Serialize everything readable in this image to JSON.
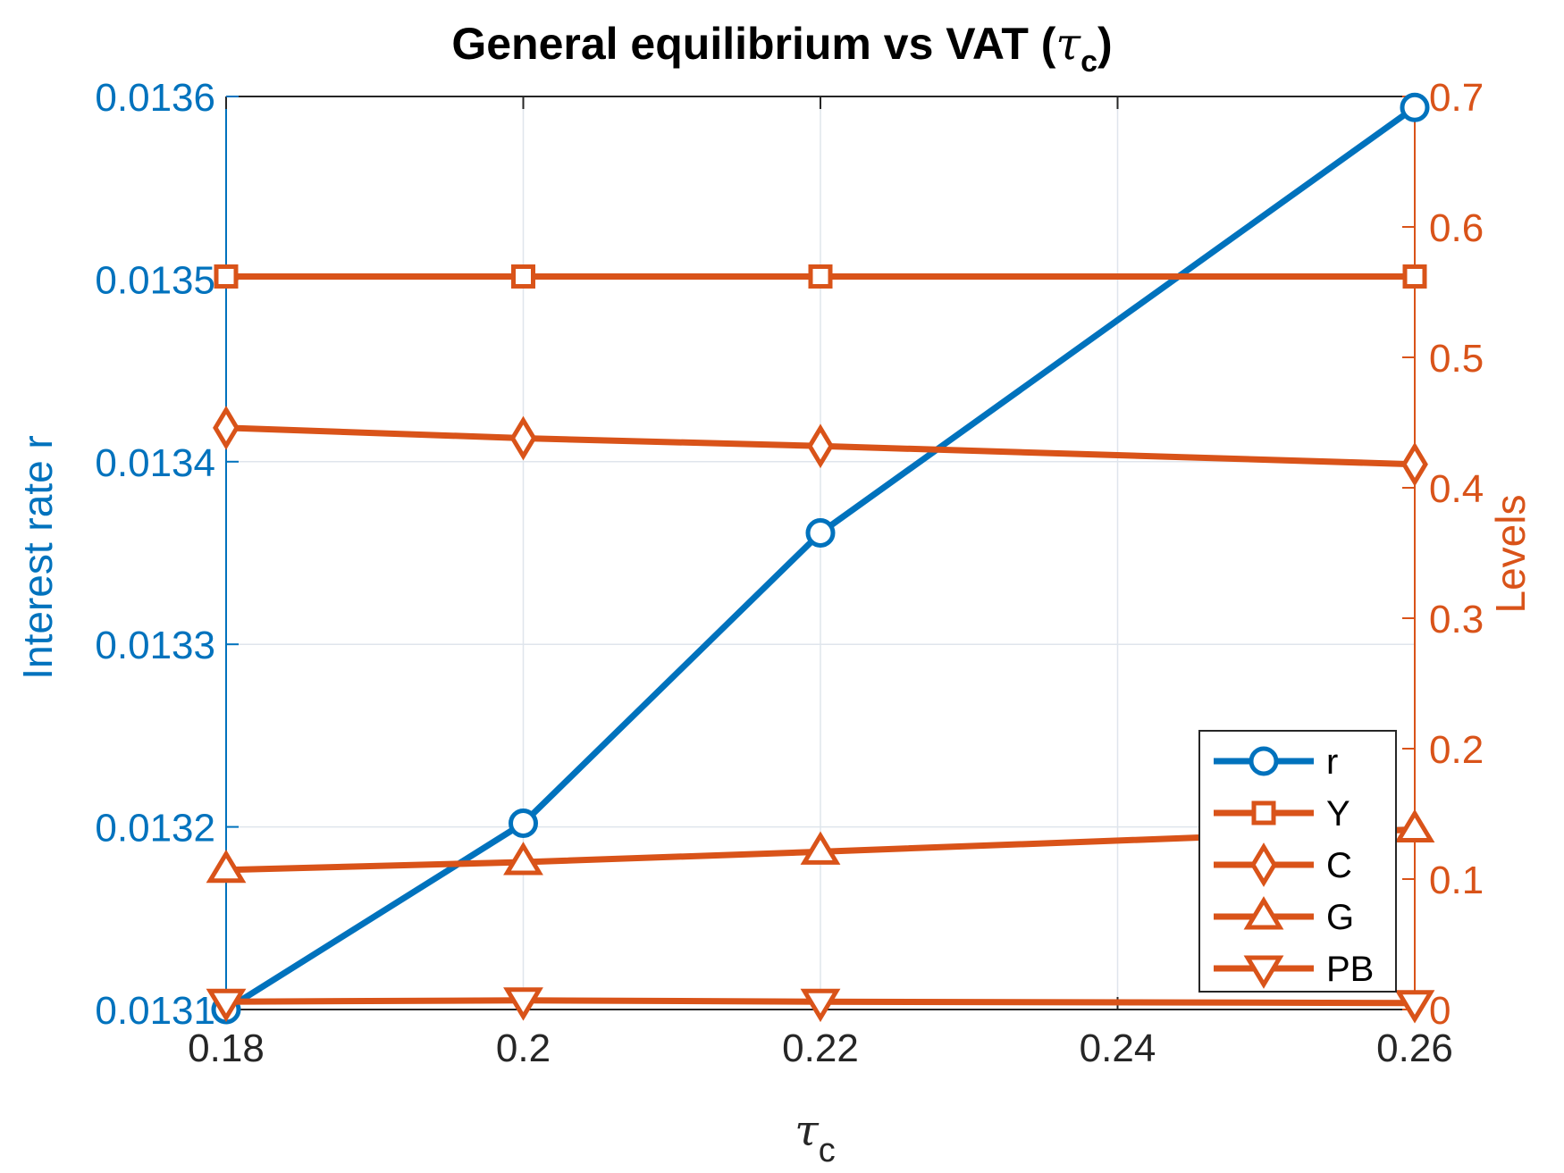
{
  "chart_data": {
    "type": "line",
    "title": "General equilibrium vs VAT (",
    "title_symbol": "τ",
    "title_sub": "c",
    "title_close": ")",
    "xlabel_symbol": "τ",
    "xlabel_sub": "c",
    "ylabel_left": "Interest rate r",
    "ylabel_right": "Levels",
    "x": [
      0.18,
      0.2,
      0.22,
      0.26
    ],
    "xlim": [
      0.18,
      0.26
    ],
    "x_ticks": [
      0.18,
      0.2,
      0.22,
      0.24,
      0.26
    ],
    "x_tick_labels": [
      "0.18",
      "0.2",
      "0.22",
      "0.24",
      "0.26"
    ],
    "ylim_left": [
      0.0131,
      0.0136
    ],
    "y_left_ticks": [
      0.0131,
      0.0132,
      0.0133,
      0.0134,
      0.0135,
      0.0136
    ],
    "y_left_tick_labels": [
      "0.0131",
      "0.0132",
      "0.0133",
      "0.0134",
      "0.0135",
      "0.0136"
    ],
    "ylim_right": [
      0,
      0.7
    ],
    "y_right_ticks": [
      0,
      0.1,
      0.2,
      0.3,
      0.4,
      0.5,
      0.6,
      0.7
    ],
    "y_right_tick_labels": [
      "0",
      "0.1",
      "0.2",
      "0.3",
      "0.4",
      "0.5",
      "0.6",
      "0.7"
    ],
    "grid": true,
    "legend_position": "bottom-right",
    "series": [
      {
        "name": "r",
        "axis": "left",
        "marker": "circle",
        "color": "#0072BD",
        "values": [
          0.0131,
          0.013202,
          0.013361,
          0.013594
        ]
      },
      {
        "name": "Y",
        "axis": "right",
        "marker": "square",
        "color": "#D95319",
        "values": [
          0.562,
          0.562,
          0.562,
          0.562
        ]
      },
      {
        "name": "C",
        "axis": "right",
        "marker": "diamond",
        "color": "#D95319",
        "values": [
          0.446,
          0.438,
          0.432,
          0.418
        ]
      },
      {
        "name": "G",
        "axis": "right",
        "marker": "triangle-up",
        "color": "#D95319",
        "values": [
          0.107,
          0.113,
          0.121,
          0.138
        ]
      },
      {
        "name": "PB",
        "axis": "right",
        "marker": "triangle-down",
        "color": "#D95319",
        "values": [
          0.006,
          0.007,
          0.006,
          0.005
        ]
      }
    ]
  }
}
